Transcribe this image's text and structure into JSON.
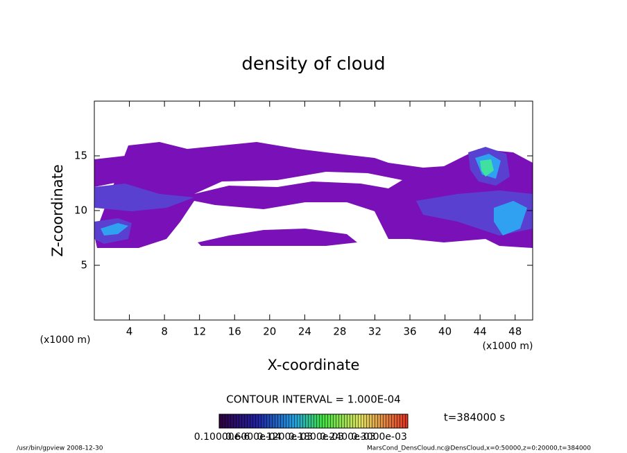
{
  "chart_data": {
    "type": "contour",
    "title": "density of cloud",
    "x_label": "X-coordinate",
    "y_label": "Z-coordinate",
    "x_unit": "(x1000 m)",
    "y_unit": "(x1000 m)",
    "xlim": [
      0,
      50
    ],
    "ylim": [
      0,
      20
    ],
    "xticks": [
      4,
      8,
      12,
      16,
      20,
      24,
      28,
      32,
      36,
      40,
      44,
      48
    ],
    "yticks": [
      5,
      10,
      15
    ],
    "contour_interval": "CONTOUR INTERVAL = 1.000E-04",
    "time": "t=384000 s",
    "colorbar_labels": [
      "0.10000e-6",
      "0.6000e-04",
      "0.1200e-03",
      "0.1800e-03",
      "0.2400e-03",
      "0.3000e-03"
    ],
    "footer_left": "/usr/bin/gpview  2008-12-30",
    "footer_right": "MarsCond_DensCloud.nc@DensCloud,x=0:50000,z=0:20000,t=384000"
  }
}
